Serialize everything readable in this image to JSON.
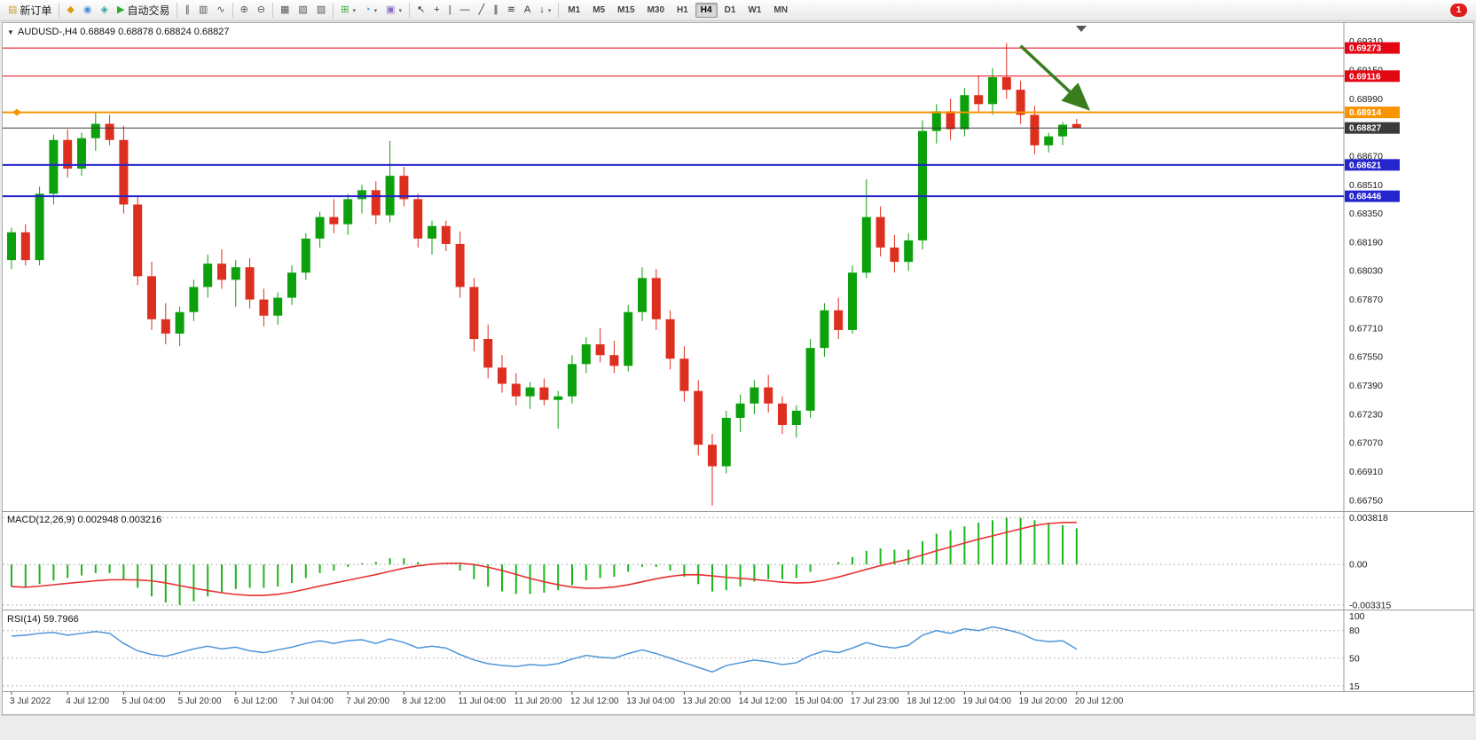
{
  "window": {
    "background": "#ececec"
  },
  "toolbar": {
    "groups": [
      {
        "items": [
          {
            "name": "new-order",
            "label": "新订单",
            "glyph": "▤",
            "color": "#c9a227"
          }
        ]
      },
      {
        "items": [
          {
            "name": "depth-of-market",
            "glyph": "◆",
            "color": "#d4a017"
          },
          {
            "name": "mql5-community",
            "glyph": "◉",
            "color": "#4a90d9"
          },
          {
            "name": "market-watch",
            "glyph": "◈",
            "color": "#2ea89c"
          },
          {
            "name": "autotrading",
            "label": "自动交易",
            "glyph": "▶",
            "color": "#2eaa2e"
          }
        ]
      },
      {
        "items": [
          {
            "name": "bar-chart-mode",
            "glyph": "∥",
            "color": "#555555"
          },
          {
            "name": "candlestick-mode",
            "glyph": "▥",
            "color": "#555555"
          },
          {
            "name": "line-chart-mode",
            "glyph": "∿",
            "color": "#555555"
          }
        ]
      },
      {
        "items": [
          {
            "name": "zoom-in",
            "glyph": "⊕",
            "color": "#555555"
          },
          {
            "name": "zoom-out",
            "glyph": "⊖",
            "color": "#555555"
          }
        ]
      },
      {
        "items": [
          {
            "name": "tile-windows",
            "glyph": "▦",
            "color": "#555555"
          },
          {
            "name": "cascade-windows",
            "glyph": "▧",
            "color": "#555555"
          },
          {
            "name": "arrange-windows",
            "glyph": "▨",
            "color": "#555555"
          }
        ]
      },
      {
        "items": [
          {
            "name": "indicators",
            "glyph": "⊞",
            "color": "#2eaa2e",
            "dropdown": true
          },
          {
            "name": "periods",
            "glyph": "◔",
            "color": "#4a90d9",
            "dropdown": true
          },
          {
            "name": "templates",
            "glyph": "▣",
            "color": "#8a6fc8",
            "dropdown": true
          }
        ]
      },
      {
        "items": [
          {
            "name": "cursor",
            "glyph": "↖",
            "color": "#333333"
          },
          {
            "name": "crosshair",
            "glyph": "+",
            "color": "#333333"
          },
          {
            "name": "vertical-line",
            "glyph": "|",
            "color": "#333333"
          },
          {
            "name": "horizontal-line",
            "glyph": "—",
            "color": "#333333"
          },
          {
            "name": "trendline",
            "glyph": "╱",
            "color": "#333333"
          },
          {
            "name": "equidistant-channel",
            "glyph": "∥",
            "color": "#333333"
          },
          {
            "name": "fibonacci-retracement",
            "glyph": "≋",
            "color": "#333333"
          },
          {
            "name": "text-label",
            "glyph": "A",
            "color": "#333333"
          },
          {
            "name": "arrow-objects",
            "glyph": "↓",
            "color": "#333333",
            "dropdown": true
          }
        ]
      }
    ],
    "timeframes": [
      {
        "label": "M1"
      },
      {
        "label": "M5"
      },
      {
        "label": "M15"
      },
      {
        "label": "M30"
      },
      {
        "label": "H1"
      },
      {
        "label": "H4",
        "active": true
      },
      {
        "label": "D1"
      },
      {
        "label": "W1"
      },
      {
        "label": "MN"
      }
    ],
    "notification_count": "1"
  },
  "chart": {
    "title_symbol": "AUDUSD-,H4",
    "ohlc_text": {
      "open": "0.68849",
      "high": "0.68878",
      "low": "0.68824",
      "close": "0.68827"
    },
    "colors": {
      "up": "#0da00d",
      "down": "#dd2f1f",
      "macd_bar": "#1db51d",
      "macd_signal": "#e63232",
      "rsi_line": "#4e95d9",
      "separator": "#9a9a9a",
      "level_dash": "#b5b5b5",
      "axis_text": "#1a1a1a",
      "arrow": "#3a7d1e"
    }
  },
  "chart_data": [
    {
      "type": "candlestick",
      "symbol": "AUDUSD-",
      "timeframe": "H4",
      "ylim": [
        0.6669,
        0.69412
      ],
      "y_ticks": [
        "0.69310",
        "0.69150",
        "0.68990",
        "0.68830",
        "0.68670",
        "0.68510",
        "0.68350",
        "0.68190",
        "0.68030",
        "0.67870",
        "0.67710",
        "0.67550",
        "0.67390",
        "0.67230",
        "0.67070",
        "0.66910",
        "0.66750"
      ],
      "x_labels": [
        "3 Jul 2022",
        "4 Jul 12:00",
        "5 Jul 04:00",
        "5 Jul 20:00",
        "6 Jul 12:00",
        "7 Jul 04:00",
        "7 Jul 20:00",
        "8 Jul 12:00",
        "11 Jul 04:00",
        "11 Jul 20:00",
        "12 Jul 12:00",
        "13 Jul 04:00",
        "13 Jul 20:00",
        "14 Jul 12:00",
        "15 Jul 04:00",
        "17 Jul 23:00",
        "18 Jul 12:00",
        "19 Jul 04:00",
        "19 Jul 20:00",
        "20 Jul 12:00"
      ],
      "bars_per_label": 4,
      "ohlc": [
        [
          0.6809,
          0.6827,
          0.6804,
          0.68245
        ],
        [
          0.68245,
          0.6829,
          0.6806,
          0.6809
        ],
        [
          0.6809,
          0.685,
          0.6806,
          0.6846
        ],
        [
          0.6846,
          0.6879,
          0.684,
          0.6876
        ],
        [
          0.6876,
          0.6882,
          0.6855,
          0.686
        ],
        [
          0.686,
          0.688,
          0.6856,
          0.6877
        ],
        [
          0.6877,
          0.68915,
          0.687,
          0.6885
        ],
        [
          0.6885,
          0.689,
          0.6873,
          0.6876
        ],
        [
          0.6876,
          0.6884,
          0.6835,
          0.684
        ],
        [
          0.684,
          0.6845,
          0.6795,
          0.68
        ],
        [
          0.68,
          0.6808,
          0.677,
          0.6776
        ],
        [
          0.6776,
          0.6785,
          0.6762,
          0.6768
        ],
        [
          0.6768,
          0.6783,
          0.6761,
          0.678
        ],
        [
          0.678,
          0.6798,
          0.6775,
          0.6794
        ],
        [
          0.6794,
          0.6812,
          0.6788,
          0.6807
        ],
        [
          0.6807,
          0.6815,
          0.6793,
          0.6798
        ],
        [
          0.6798,
          0.6809,
          0.6783,
          0.6805
        ],
        [
          0.6805,
          0.681,
          0.6782,
          0.6787
        ],
        [
          0.6787,
          0.6793,
          0.6772,
          0.6778
        ],
        [
          0.6778,
          0.6791,
          0.6773,
          0.6788
        ],
        [
          0.6788,
          0.6806,
          0.6784,
          0.6802
        ],
        [
          0.6802,
          0.6824,
          0.6798,
          0.6821
        ],
        [
          0.6821,
          0.6836,
          0.6816,
          0.6833
        ],
        [
          0.6833,
          0.6843,
          0.6824,
          0.6829
        ],
        [
          0.6829,
          0.6846,
          0.6823,
          0.6843
        ],
        [
          0.6843,
          0.6851,
          0.6835,
          0.6848
        ],
        [
          0.6848,
          0.6853,
          0.6829,
          0.6834
        ],
        [
          0.6834,
          0.68755,
          0.683,
          0.6856
        ],
        [
          0.6856,
          0.6861,
          0.6839,
          0.6843
        ],
        [
          0.6843,
          0.6846,
          0.6816,
          0.6821
        ],
        [
          0.6821,
          0.6831,
          0.6812,
          0.6828
        ],
        [
          0.6828,
          0.6831,
          0.6814,
          0.6818
        ],
        [
          0.6818,
          0.6825,
          0.6788,
          0.6794
        ],
        [
          0.6794,
          0.6799,
          0.6758,
          0.6765
        ],
        [
          0.6765,
          0.6773,
          0.6743,
          0.6749
        ],
        [
          0.6749,
          0.6756,
          0.6735,
          0.674
        ],
        [
          0.674,
          0.6746,
          0.6728,
          0.6733
        ],
        [
          0.6733,
          0.6741,
          0.6726,
          0.6738
        ],
        [
          0.6738,
          0.6743,
          0.6728,
          0.6731
        ],
        [
          0.6731,
          0.6736,
          0.6715,
          0.6733
        ],
        [
          0.6733,
          0.6756,
          0.6729,
          0.6751
        ],
        [
          0.6751,
          0.6766,
          0.6746,
          0.6762
        ],
        [
          0.6762,
          0.6771,
          0.6752,
          0.6756
        ],
        [
          0.6756,
          0.6764,
          0.6746,
          0.675
        ],
        [
          0.675,
          0.6784,
          0.6747,
          0.678
        ],
        [
          0.678,
          0.6805,
          0.6775,
          0.6799
        ],
        [
          0.6799,
          0.6804,
          0.677,
          0.6776
        ],
        [
          0.6776,
          0.6781,
          0.6748,
          0.6754
        ],
        [
          0.6754,
          0.6761,
          0.673,
          0.6736
        ],
        [
          0.6736,
          0.6742,
          0.67,
          0.6706
        ],
        [
          0.6706,
          0.6712,
          0.6672,
          0.6694
        ],
        [
          0.6694,
          0.6725,
          0.669,
          0.6721
        ],
        [
          0.6721,
          0.6734,
          0.6713,
          0.6729
        ],
        [
          0.6729,
          0.6742,
          0.6723,
          0.6738
        ],
        [
          0.6738,
          0.6745,
          0.6724,
          0.6729
        ],
        [
          0.6729,
          0.6733,
          0.6712,
          0.6717
        ],
        [
          0.6717,
          0.6728,
          0.671,
          0.6725
        ],
        [
          0.6725,
          0.6765,
          0.6721,
          0.676
        ],
        [
          0.676,
          0.6785,
          0.6755,
          0.6781
        ],
        [
          0.6781,
          0.6788,
          0.6765,
          0.677
        ],
        [
          0.677,
          0.6806,
          0.6768,
          0.6802
        ],
        [
          0.6802,
          0.6854,
          0.6799,
          0.6833
        ],
        [
          0.6833,
          0.6839,
          0.6811,
          0.6816
        ],
        [
          0.6816,
          0.6823,
          0.6802,
          0.6808
        ],
        [
          0.6808,
          0.6824,
          0.6803,
          0.682
        ],
        [
          0.682,
          0.6887,
          0.6815,
          0.6881
        ],
        [
          0.6881,
          0.6896,
          0.6874,
          0.6892
        ],
        [
          0.6892,
          0.6899,
          0.6876,
          0.6882
        ],
        [
          0.6882,
          0.6905,
          0.6878,
          0.6901
        ],
        [
          0.6901,
          0.6912,
          0.6892,
          0.6896
        ],
        [
          0.6896,
          0.6916,
          0.689,
          0.6911
        ],
        [
          0.6911,
          0.693,
          0.6899,
          0.6904
        ],
        [
          0.6904,
          0.6909,
          0.6885,
          0.689
        ],
        [
          0.689,
          0.6895,
          0.6868,
          0.6873
        ],
        [
          0.6873,
          0.688,
          0.6869,
          0.6878
        ],
        [
          0.6878,
          0.6886,
          0.6873,
          0.68845
        ],
        [
          0.68849,
          0.68878,
          0.68824,
          0.68827
        ]
      ],
      "horizontal_lines": [
        {
          "price": 0.69273,
          "label": "0.69273",
          "color": "#e30613",
          "width": 1
        },
        {
          "price": 0.69116,
          "label": "0.69116",
          "color": "#e30613",
          "width": 1
        },
        {
          "price": 0.68914,
          "label": "0.68914",
          "color": "#f79400",
          "width": 2,
          "handle": true
        },
        {
          "price": 0.68827,
          "label": "0.68827",
          "color": "#3a3a3a",
          "width": 1
        },
        {
          "price": 0.68621,
          "label": "0.68621",
          "color": "#2525cd",
          "width": 2
        },
        {
          "price": 0.68446,
          "label": "0.68446",
          "color": "#2525cd",
          "width": 2
        }
      ],
      "arrow_annotation": {
        "x1_bar": 72.0,
        "y1_price": 0.69285,
        "x2_bar": 76.8,
        "y2_price": 0.68935,
        "color": "#3a7d1e"
      }
    },
    {
      "type": "bar",
      "name": "MACD(12,26,9)",
      "current_macd": "0.002948",
      "current_signal": "0.003216",
      "ylim": [
        -0.0036,
        0.0042
      ],
      "y_ticks": [
        {
          "value": 0.003818,
          "label": "0.003818"
        },
        {
          "value": 0,
          "label": "0.00"
        },
        {
          "value": -0.003315,
          "label": "-0.003315"
        }
      ],
      "signal_period": 9,
      "values": [
        -0.0018,
        -0.0019,
        -0.0016,
        -0.0013,
        -0.0011,
        -0.0009,
        -0.0007,
        -0.0007,
        -0.0012,
        -0.0019,
        -0.0026,
        -0.0031,
        -0.0033,
        -0.003,
        -0.0026,
        -0.0023,
        -0.002,
        -0.0019,
        -0.0019,
        -0.0018,
        -0.0015,
        -0.0011,
        -0.0007,
        -0.0005,
        -0.0002,
        0.0001,
        0.0002,
        0.0005,
        0.0005,
        0.0002,
        0.0001,
        0.0,
        -0.0005,
        -0.0012,
        -0.0018,
        -0.0022,
        -0.0024,
        -0.0024,
        -0.0023,
        -0.0021,
        -0.0017,
        -0.0013,
        -0.0011,
        -0.001,
        -0.0006,
        -0.0002,
        -0.0002,
        -0.0005,
        -0.001,
        -0.0016,
        -0.0022,
        -0.0021,
        -0.0018,
        -0.0014,
        -0.0012,
        -0.0012,
        -0.0011,
        -0.0006,
        0.0,
        0.0002,
        0.0006,
        0.0011,
        0.0013,
        0.0012,
        0.0012,
        0.0019,
        0.0025,
        0.0028,
        0.0031,
        0.0034,
        0.0036,
        0.0038,
        0.0038,
        0.0036,
        0.0034,
        0.0032,
        0.002948
      ]
    },
    {
      "type": "line",
      "name": "RSI(14)",
      "current_value": "59.7966",
      "ylim": [
        15,
        100
      ],
      "dashed_levels": [
        80,
        50,
        20
      ],
      "y_ticks": [
        {
          "value": 100,
          "label": "100"
        },
        {
          "value": 80,
          "label": "80"
        },
        {
          "value": 50,
          "label": "50"
        },
        {
          "value": 15,
          "label": "15"
        }
      ],
      "values": [
        74,
        75,
        77,
        78,
        75,
        77,
        79,
        77,
        66,
        58,
        54,
        52,
        56,
        60,
        63,
        60,
        62,
        58,
        56,
        59,
        62,
        66,
        69,
        66,
        69,
        70,
        66,
        71,
        67,
        61,
        63,
        61,
        54,
        48,
        44,
        42,
        41,
        43,
        42,
        44,
        49,
        53,
        51,
        50,
        55,
        59,
        55,
        50,
        45,
        40,
        35,
        42,
        45,
        48,
        46,
        43,
        45,
        53,
        58,
        56,
        61,
        67,
        63,
        61,
        64,
        75,
        80,
        77,
        82,
        80,
        84,
        81,
        77,
        70,
        68,
        69,
        59.8
      ]
    }
  ]
}
